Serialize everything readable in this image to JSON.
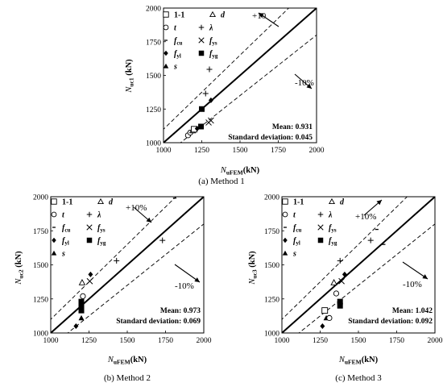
{
  "figure": {
    "captions": [
      "(a) Method 1",
      "(b) Method 2",
      "(c) Method 3"
    ]
  },
  "legend": {
    "entries": [
      {
        "label": "1-1",
        "marker": "open-square"
      },
      {
        "label": "d",
        "marker": "open-triangle"
      },
      {
        "label": "t",
        "marker": "open-circle"
      },
      {
        "label": "λ",
        "marker": "plus"
      },
      {
        "label": "fcu",
        "marker": "dash"
      },
      {
        "label": "fys",
        "marker": "cross"
      },
      {
        "label": "fyl",
        "marker": "filled-diamond"
      },
      {
        "label": "fyg",
        "marker": "filled-square"
      },
      {
        "label": "s",
        "marker": "filled-triangle"
      }
    ]
  },
  "chart_data": [
    {
      "type": "scatter",
      "panel": "a",
      "caption": "(a) Method 1",
      "xlabel": "NuFEM(kN)",
      "ylabel": "Nuc1 (kN)",
      "xlim": [
        1000,
        2000
      ],
      "ylim": [
        1000,
        2000
      ],
      "xticks": [
        "1000",
        "1250",
        "1500",
        "1750",
        "2000"
      ],
      "yticks": [
        "1000",
        "1250",
        "1500",
        "1750",
        "2000"
      ],
      "reference_lines": [
        "y = x",
        "+10%",
        "-10%"
      ],
      "band_labels": [
        "+10",
        "-10%"
      ],
      "stats": [
        "Mean: 0.931",
        "Standard deviation: 0.045"
      ],
      "points": [
        {
          "marker": "open-circle",
          "x": 1160,
          "y": 1055
        },
        {
          "marker": "open-circle",
          "x": 1175,
          "y": 1075
        },
        {
          "marker": "open-triangle",
          "x": 1190,
          "y": 1090
        },
        {
          "marker": "open-square",
          "x": 1200,
          "y": 1100
        },
        {
          "marker": "filled-diamond",
          "x": 1220,
          "y": 1105
        },
        {
          "marker": "filled-square",
          "x": 1245,
          "y": 1120
        },
        {
          "marker": "cross",
          "x": 1295,
          "y": 1150
        },
        {
          "marker": "cross",
          "x": 1310,
          "y": 1165
        },
        {
          "marker": "filled-diamond",
          "x": 1310,
          "y": 1315
        },
        {
          "marker": "filled-square",
          "x": 1250,
          "y": 1250
        },
        {
          "marker": "plus",
          "x": 1275,
          "y": 1365
        },
        {
          "marker": "plus",
          "x": 1300,
          "y": 1545
        }
      ]
    },
    {
      "type": "scatter",
      "panel": "b",
      "caption": "(b) Method 2",
      "xlabel": "NuFEM(kN)",
      "ylabel": "Nuc2 (kN)",
      "xlim": [
        1000,
        2000
      ],
      "ylim": [
        1000,
        2000
      ],
      "xticks": [
        "1000",
        "1250",
        "1500",
        "1750",
        "2000"
      ],
      "yticks": [
        "1000",
        "1250",
        "1500",
        "1750",
        "2000"
      ],
      "reference_lines": [
        "y = x",
        "+10%",
        "-10%"
      ],
      "band_labels": [
        "+10%",
        "-10%"
      ],
      "stats": [
        "Mean: 0.973",
        "Standard deviation: 0.069"
      ],
      "points": [
        {
          "marker": "filled-diamond",
          "x": 1165,
          "y": 1050
        },
        {
          "marker": "filled-triangle",
          "x": 1200,
          "y": 1110
        },
        {
          "marker": "filled-square",
          "x": 1200,
          "y": 1165
        },
        {
          "marker": "filled-square",
          "x": 1200,
          "y": 1200
        },
        {
          "marker": "filled-square",
          "x": 1200,
          "y": 1230
        },
        {
          "marker": "open-circle",
          "x": 1210,
          "y": 1270
        },
        {
          "marker": "open-triangle",
          "x": 1205,
          "y": 1370
        },
        {
          "marker": "cross",
          "x": 1255,
          "y": 1380
        },
        {
          "marker": "filled-diamond",
          "x": 1260,
          "y": 1430
        },
        {
          "marker": "plus",
          "x": 1430,
          "y": 1530
        },
        {
          "marker": "plus",
          "x": 1730,
          "y": 1680
        },
        {
          "marker": "dash",
          "x": 1810,
          "y": 1990
        }
      ]
    },
    {
      "type": "scatter",
      "panel": "c",
      "caption": "(c) Method 3",
      "xlabel": "NuFEM(kN)",
      "ylabel": "Nuc3 (kN)",
      "xlim": [
        1000,
        2000
      ],
      "ylim": [
        1000,
        2000
      ],
      "xticks": [
        "1000",
        "1250",
        "1500",
        "1750",
        "2000"
      ],
      "yticks": [
        "1000",
        "1250",
        "1500",
        "1750",
        "2000"
      ],
      "reference_lines": [
        "y = x",
        "+10%",
        "-10%"
      ],
      "band_labels": [
        "+10%",
        "-10%"
      ],
      "stats": [
        "Mean: 1.042",
        "Standard deviation: 0.092"
      ],
      "points": [
        {
          "marker": "filled-diamond",
          "x": 1265,
          "y": 1050
        },
        {
          "marker": "filled-triangle",
          "x": 1290,
          "y": 1110
        },
        {
          "marker": "open-square",
          "x": 1280,
          "y": 1165
        },
        {
          "marker": "open-circle",
          "x": 1310,
          "y": 1110
        },
        {
          "marker": "open-triangle",
          "x": 1340,
          "y": 1370
        },
        {
          "marker": "filled-square",
          "x": 1380,
          "y": 1200
        },
        {
          "marker": "filled-square",
          "x": 1380,
          "y": 1230
        },
        {
          "marker": "open-circle",
          "x": 1355,
          "y": 1290
        },
        {
          "marker": "cross",
          "x": 1390,
          "y": 1380
        },
        {
          "marker": "filled-diamond",
          "x": 1410,
          "y": 1430
        },
        {
          "marker": "plus",
          "x": 1380,
          "y": 1530
        },
        {
          "marker": "plus",
          "x": 1580,
          "y": 1680
        },
        {
          "marker": "dash",
          "x": 1620,
          "y": 1760
        },
        {
          "marker": "dash",
          "x": 1665,
          "y": 1650
        }
      ]
    }
  ]
}
